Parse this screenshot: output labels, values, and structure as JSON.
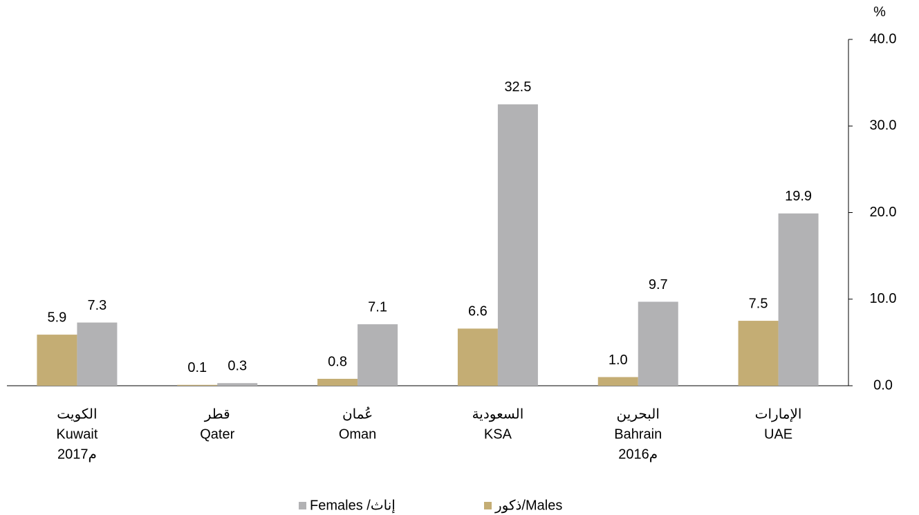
{
  "chart_data": {
    "type": "bar",
    "y_unit": "%",
    "categories": [
      [
        "الكويت",
        "Kuwait",
        "2017م"
      ],
      [
        "قطر",
        "Qater"
      ],
      [
        "عُمان",
        "Oman"
      ],
      [
        "السعودية",
        "KSA"
      ],
      [
        "البحرين",
        "Bahrain",
        "2016م"
      ],
      [
        "الإمارات",
        "UAE"
      ]
    ],
    "series": [
      {
        "name": "ذكور/Males",
        "color": "#c4ad74",
        "values": [
          5.9,
          0.1,
          0.8,
          6.6,
          1.0,
          7.5
        ],
        "value_labels": [
          "5.9",
          "0.1",
          "0.8",
          "6.6",
          "1.0",
          "7.5"
        ]
      },
      {
        "name": "Females /إناث",
        "color": "#b2b2b4",
        "values": [
          7.3,
          0.3,
          7.1,
          32.5,
          9.7,
          19.9
        ],
        "value_labels": [
          "7.3",
          "0.3",
          "7.1",
          "32.5",
          "9.7",
          "19.9"
        ]
      }
    ],
    "ylim": [
      0,
      40
    ],
    "yticks": [
      {
        "value": 0,
        "label": "0.0"
      },
      {
        "value": 10,
        "label": "10.0"
      },
      {
        "value": 20,
        "label": "20.0"
      },
      {
        "value": 30,
        "label": "30.0"
      },
      {
        "value": 40,
        "label": "40.0"
      }
    ],
    "y_axis_side": "right",
    "grid": false
  }
}
